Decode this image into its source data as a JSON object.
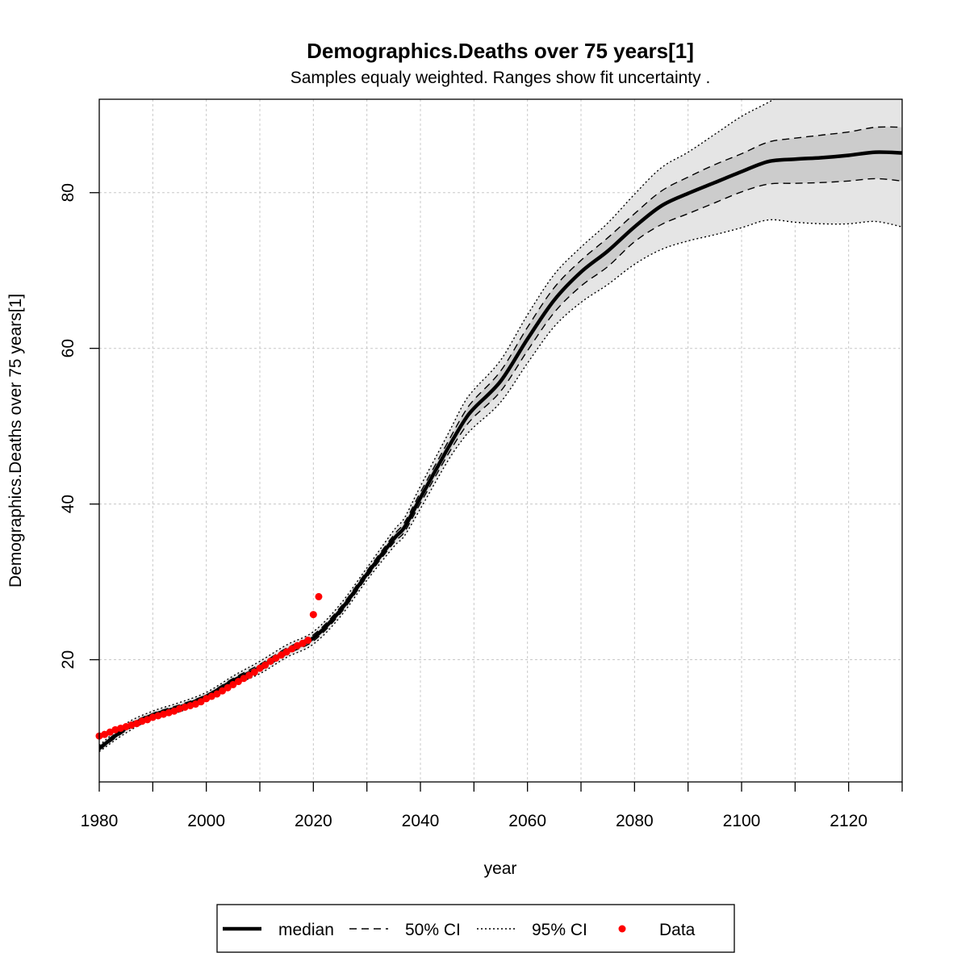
{
  "chart_data": {
    "type": "line",
    "title": "Demographics.Deaths over 75 years[1]",
    "subtitle": "Samples equaly weighted. Ranges show  fit uncertainty .",
    "xlabel": "year",
    "ylabel": "Demographics.Deaths over 75 years[1]",
    "xlim": [
      1980,
      2130
    ],
    "ylim": [
      4.3,
      92
    ],
    "x_ticks": [
      1980,
      2000,
      2020,
      2040,
      2060,
      2080,
      2100,
      2120
    ],
    "y_ticks": [
      20,
      40,
      60,
      80
    ],
    "grid": true,
    "colors": {
      "median": "#000000",
      "band95": "#e5e5e5",
      "band50": "#cccccc",
      "data": "#ff0000",
      "grid": "#c8c8c8"
    },
    "x": [
      1980,
      1985,
      1990,
      1995,
      2000,
      2005,
      2010,
      2015,
      2020,
      2025,
      2030,
      2035,
      2037,
      2040,
      2045,
      2048,
      2050,
      2055,
      2060,
      2065,
      2070,
      2075,
      2080,
      2085,
      2090,
      2095,
      2100,
      2105,
      2110,
      2115,
      2120,
      2125,
      2130
    ],
    "series": [
      {
        "name": "median",
        "values": [
          8.6,
          11.2,
          12.9,
          13.9,
          15.3,
          17.3,
          19.0,
          21.1,
          22.8,
          26.3,
          31.0,
          35.5,
          37.0,
          40.8,
          47.0,
          50.5,
          52.3,
          55.8,
          61.2,
          66.2,
          69.8,
          72.5,
          75.6,
          78.3,
          79.9,
          81.3,
          82.7,
          84.0,
          84.3,
          84.5,
          84.8,
          85.2,
          85.1
        ]
      },
      {
        "name": "50% CI",
        "role": "upper",
        "values": [
          8.8,
          11.5,
          13.1,
          14.2,
          15.5,
          17.6,
          19.4,
          21.5,
          23.2,
          26.7,
          31.4,
          36.0,
          37.6,
          41.5,
          47.8,
          51.5,
          53.4,
          57.1,
          62.7,
          67.8,
          71.3,
          74.2,
          77.3,
          80.2,
          82.0,
          83.6,
          85.0,
          86.5,
          87.0,
          87.4,
          87.8,
          88.4,
          88.4
        ]
      },
      {
        "name": "50% CI",
        "role": "lower",
        "values": [
          8.4,
          10.9,
          12.7,
          13.6,
          15.1,
          17.0,
          18.6,
          20.7,
          22.4,
          25.9,
          30.6,
          35.0,
          36.4,
          40.1,
          46.2,
          49.5,
          51.2,
          54.5,
          59.7,
          64.6,
          68.0,
          70.5,
          73.7,
          75.9,
          77.3,
          78.7,
          80.1,
          81.1,
          81.2,
          81.3,
          81.5,
          81.8,
          81.5
        ]
      },
      {
        "name": "95% CI",
        "role": "upper",
        "values": [
          9.0,
          11.8,
          13.4,
          14.5,
          15.8,
          17.9,
          19.8,
          21.9,
          23.6,
          27.1,
          31.8,
          36.6,
          38.2,
          42.3,
          48.8,
          52.8,
          54.7,
          58.5,
          64.3,
          69.5,
          73.0,
          76.1,
          79.8,
          83.2,
          85.2,
          87.5,
          89.8,
          91.6,
          93.5,
          95.0,
          96.0,
          96.5,
          97.0
        ]
      },
      {
        "name": "95% CI",
        "role": "lower",
        "values": [
          8.2,
          10.6,
          12.4,
          13.3,
          14.8,
          16.7,
          18.2,
          20.3,
          22.0,
          25.5,
          30.2,
          34.5,
          35.9,
          39.4,
          45.4,
          48.4,
          49.9,
          53.1,
          58.1,
          62.8,
          65.9,
          68.2,
          70.8,
          72.7,
          73.8,
          74.6,
          75.5,
          76.5,
          76.2,
          76.0,
          76.0,
          76.3,
          75.6
        ]
      }
    ],
    "data_points": {
      "name": "Data",
      "x": [
        1980,
        1981,
        1982,
        1983,
        1984,
        1985,
        1986,
        1987,
        1988,
        1989,
        1990,
        1991,
        1992,
        1993,
        1994,
        1995,
        1996,
        1997,
        1998,
        1999,
        2000,
        2001,
        2002,
        2003,
        2004,
        2005,
        2006,
        2007,
        2008,
        2009,
        2010,
        2011,
        2012,
        2013,
        2014,
        2015,
        2016,
        2017,
        2018,
        2019,
        2020,
        2021
      ],
      "y": [
        10.2,
        10.4,
        10.7,
        11.0,
        11.2,
        11.4,
        11.6,
        11.8,
        12.1,
        12.3,
        12.6,
        12.8,
        13.0,
        13.2,
        13.4,
        13.7,
        13.9,
        14.1,
        14.3,
        14.6,
        15.0,
        15.3,
        15.6,
        16.0,
        16.4,
        16.8,
        17.2,
        17.6,
        18.0,
        18.4,
        18.9,
        19.3,
        19.8,
        20.2,
        20.6,
        21.0,
        21.4,
        21.8,
        22.1,
        22.5,
        25.8,
        28.1
      ]
    },
    "legend": {
      "placement": "bottom-center",
      "entries": [
        "median",
        "50% CI",
        "95% CI",
        "Data"
      ]
    }
  }
}
